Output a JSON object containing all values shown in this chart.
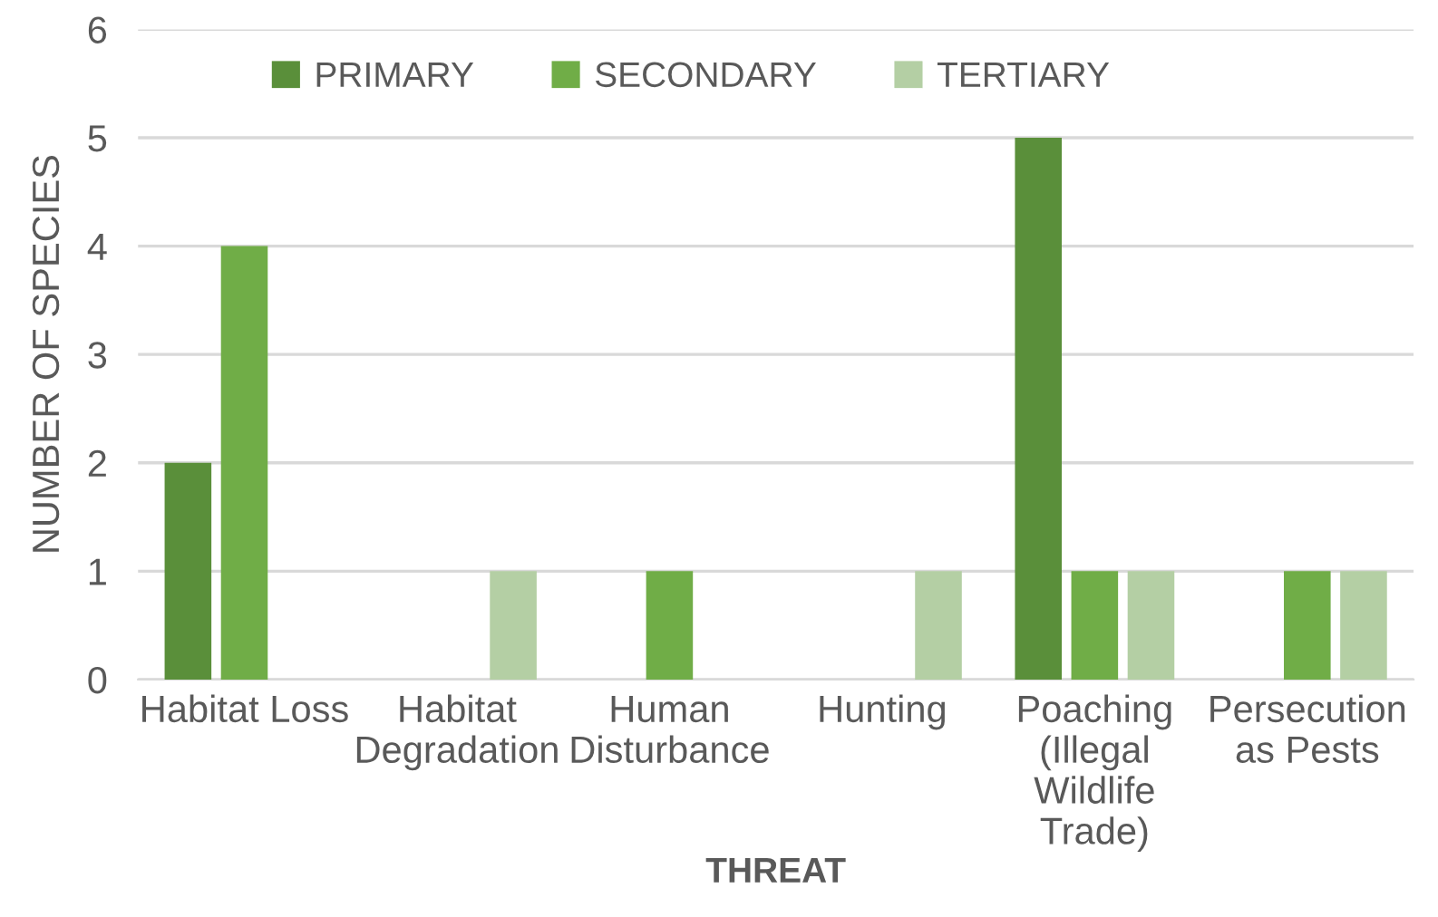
{
  "chart_data": {
    "type": "bar",
    "xlabel": "THREAT",
    "ylabel": "NUMBER OF SPECIES",
    "categories": [
      "Habitat Loss",
      "Habitat\nDegradation",
      "Human\nDisturbance",
      "Hunting",
      "Poaching\n(Illegal\nWildlife\nTrade)",
      "Persecution\nas Pests"
    ],
    "series": [
      {
        "name": "PRIMARY",
        "color": "#5a8f3a",
        "values": [
          2,
          0,
          0,
          0,
          5,
          0
        ]
      },
      {
        "name": "SECONDARY",
        "color": "#70ad47",
        "values": [
          4,
          0,
          1,
          0,
          1,
          1
        ]
      },
      {
        "name": "TERTIARY",
        "color": "#b4cfa4",
        "values": [
          0,
          1,
          0,
          1,
          1,
          1
        ]
      }
    ],
    "ylim": [
      0,
      6
    ],
    "yticks": [
      0,
      1,
      2,
      3,
      4,
      5,
      6
    ],
    "grid": "y",
    "legend": "top left"
  }
}
